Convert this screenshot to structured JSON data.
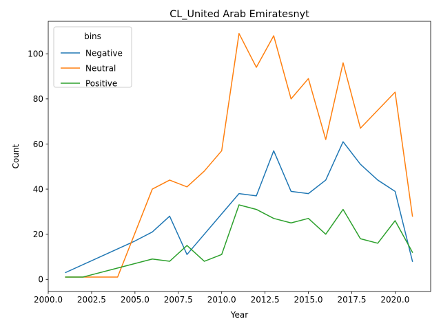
{
  "chart_data": {
    "type": "line",
    "title": "CL_United Arab Emiratesnyt",
    "xlabel": "Year",
    "ylabel": "Count",
    "xlim": [
      2000,
      2022.05
    ],
    "ylim": [
      -5.4,
      114.4
    ],
    "x_ticks": [
      2000,
      2002.5,
      2005,
      2007.5,
      2010,
      2012.5,
      2015,
      2017.5,
      2020
    ],
    "x_tick_labels": [
      "2000.0",
      "2002.5",
      "2005.0",
      "2007.5",
      "2010.0",
      "2012.5",
      "2015.0",
      "2017.5",
      "2020.0"
    ],
    "y_ticks": [
      0,
      20,
      40,
      60,
      80,
      100
    ],
    "y_tick_labels": [
      "0",
      "20",
      "40",
      "60",
      "80",
      "100"
    ],
    "grid": false,
    "legend": {
      "title": "bins",
      "placement": "top-left"
    },
    "series": [
      {
        "name": "Negative",
        "color": "#1f77b4",
        "x": [
          2001,
          2005,
          2006,
          2007,
          2008,
          2010,
          2011,
          2012,
          2013,
          2014,
          2015,
          2016,
          2017,
          2018,
          2019,
          2020,
          2021
        ],
        "values": [
          3,
          17,
          21,
          28,
          11,
          29,
          38,
          37,
          57,
          39,
          38,
          44,
          61,
          51,
          44,
          39,
          8
        ]
      },
      {
        "name": "Neutral",
        "color": "#ff7f0e",
        "x": [
          2001,
          2004,
          2006,
          2007,
          2008,
          2009,
          2010,
          2011,
          2012,
          2013,
          2014,
          2015,
          2016,
          2017,
          2018,
          2020,
          2021
        ],
        "values": [
          1,
          1,
          40,
          44,
          41,
          48,
          57,
          109,
          94,
          108,
          80,
          89,
          62,
          96,
          67,
          83,
          28
        ]
      },
      {
        "name": "Positive",
        "color": "#2ca02c",
        "x": [
          2001,
          2002,
          2004,
          2006,
          2007,
          2008,
          2009,
          2010,
          2011,
          2012,
          2013,
          2014,
          2015,
          2016,
          2017,
          2018,
          2019,
          2020,
          2021
        ],
        "values": [
          1,
          1,
          5,
          9,
          8,
          15,
          8,
          11,
          33,
          31,
          27,
          25,
          27,
          20,
          31,
          18,
          16,
          26,
          12
        ]
      }
    ]
  }
}
